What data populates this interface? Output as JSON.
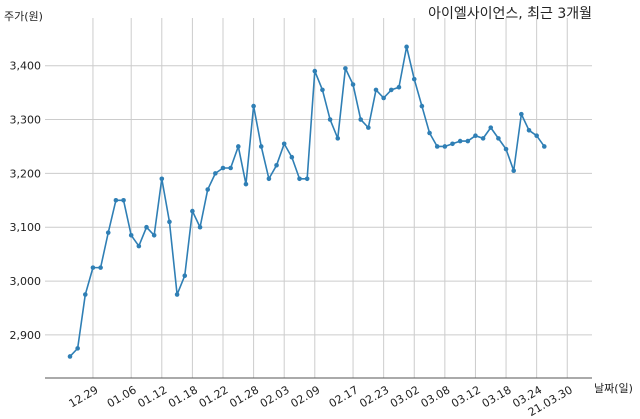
{
  "chart_data": {
    "type": "line",
    "title": "아이엘사이언스, 최근 3개월",
    "ylabel": "주가(원)",
    "xlabel": "날짜(일)",
    "ylim": [
      2820,
      3470
    ],
    "yticks": [
      2900,
      3000,
      3100,
      3200,
      3300,
      3400
    ],
    "ytick_labels": [
      "2,900",
      "3,000",
      "3,100",
      "3,200",
      "3,300",
      "3,400"
    ],
    "xtick_labels": [
      "12.29",
      "01.06",
      "01.12",
      "01.18",
      "01.22",
      "01.28",
      "02.03",
      "02.09",
      "02.17",
      "02.23",
      "03.02",
      "03.08",
      "03.12",
      "03.18",
      "03.24",
      "21.03.30"
    ],
    "xtick_indices": [
      3,
      8,
      12,
      16,
      20,
      24,
      28,
      32,
      37,
      41,
      45,
      49,
      53,
      57,
      61,
      65
    ],
    "grid": true,
    "line_color": "#2f7fb5",
    "values": [
      2860,
      2875,
      2975,
      3025,
      3025,
      3090,
      3150,
      3150,
      3085,
      3065,
      3100,
      3085,
      3190,
      3110,
      2975,
      3010,
      3130,
      3100,
      3170,
      3200,
      3210,
      3210,
      3250,
      3180,
      3325,
      3250,
      3190,
      3215,
      3255,
      3230,
      3190,
      3190,
      3390,
      3355,
      3300,
      3265,
      3395,
      3365,
      3300,
      3285,
      3355,
      3340,
      3355,
      3360,
      3435,
      3375,
      3325,
      3275,
      3250,
      3250,
      3255,
      3260,
      3260,
      3270,
      3265,
      3285,
      3265,
      3245,
      3205,
      3310,
      3280,
      3270,
      3250
    ]
  }
}
